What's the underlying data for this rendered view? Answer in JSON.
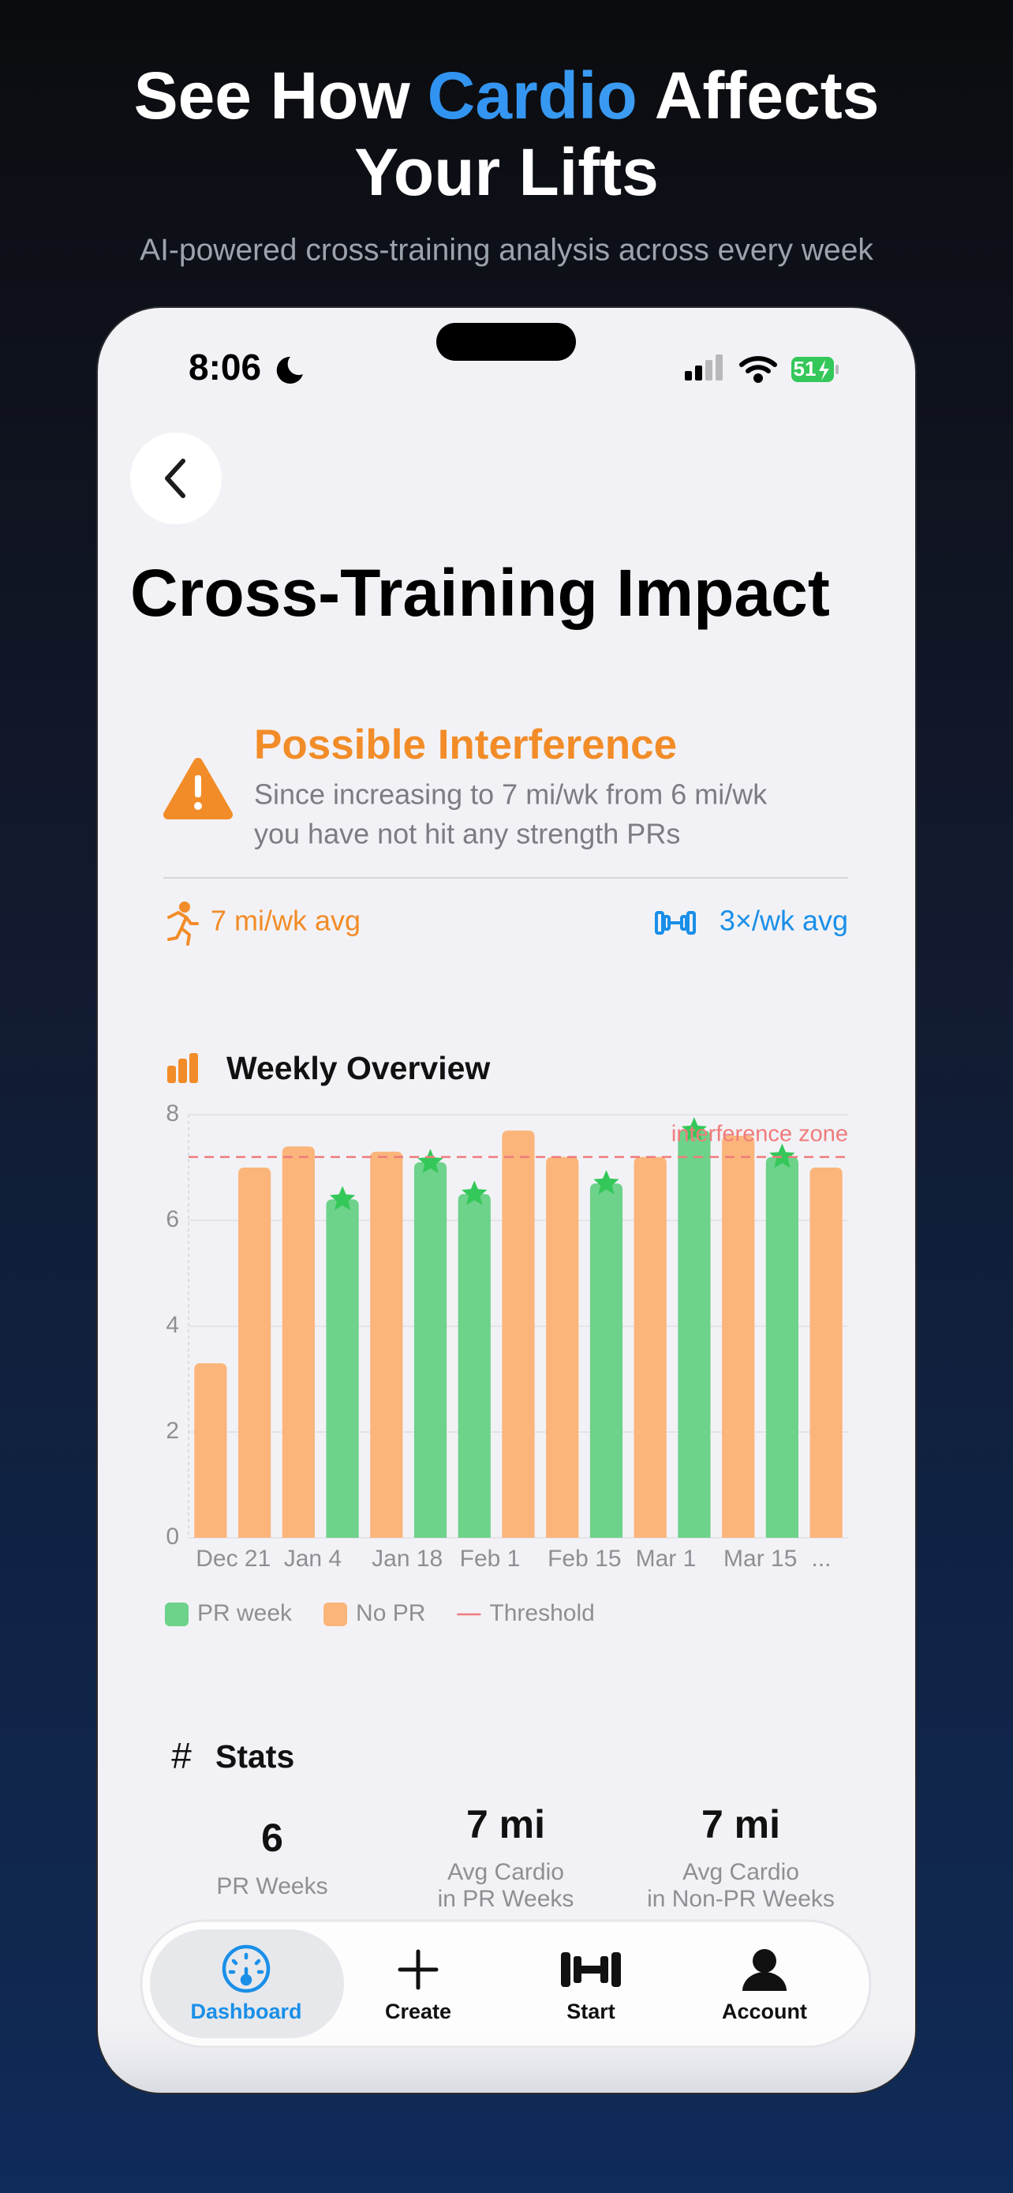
{
  "header": {
    "title_parts": [
      "See How",
      "Cardio",
      "Affects"
    ],
    "title_line2": "Your Lifts",
    "subtitle": "AI-powered cross-training analysis across every week"
  },
  "status_bar": {
    "time": "8:06",
    "battery": "51"
  },
  "screen": {
    "title": "Cross-Training Impact"
  },
  "alert": {
    "title": "Possible Interference",
    "lines": [
      "Since increasing to 7 mi/wk from 6 mi/wk",
      "you have not hit any strength PRs"
    ],
    "cardio": "7 mi/wk avg",
    "strength": "3×/wk avg"
  },
  "chart_data": {
    "type": "bar",
    "title": "Weekly Overview",
    "categories": [
      "Dec 21",
      null,
      "Jan 4",
      null,
      "Jan 18",
      null,
      "Feb 1",
      null,
      "Feb 15",
      null,
      "Mar 1",
      null,
      "Mar 15",
      null,
      "..."
    ],
    "series": [
      {
        "name": "PR week",
        "color": "#6dd28a",
        "values": [
          null,
          null,
          null,
          6.4,
          null,
          7.1,
          6.5,
          null,
          null,
          6.7,
          null,
          7.7,
          null,
          7.2,
          null
        ]
      },
      {
        "name": "No PR",
        "color": "#fbb57b",
        "values": [
          3.3,
          7.0,
          7.4,
          null,
          7.3,
          null,
          null,
          7.7,
          7.2,
          null,
          7.2,
          null,
          7.6,
          null,
          7.0
        ]
      }
    ],
    "threshold": {
      "name": "Threshold",
      "value": 7.2,
      "label": "interference zone",
      "color": "#f07b7b"
    },
    "ylim": [
      0,
      8
    ],
    "yticks": [
      0,
      2,
      4,
      6,
      8
    ],
    "grid": true
  },
  "stats": {
    "title": "Stats",
    "items": [
      {
        "value": "6",
        "label": [
          "PR Weeks"
        ]
      },
      {
        "value": "7 mi",
        "label": [
          "Avg Cardio",
          "in PR Weeks"
        ]
      },
      {
        "value": "7 mi",
        "label": [
          "Avg Cardio",
          "in Non-PR Weeks"
        ]
      }
    ]
  },
  "tabs": [
    "Dashboard",
    "Create",
    "Start",
    "Account"
  ]
}
